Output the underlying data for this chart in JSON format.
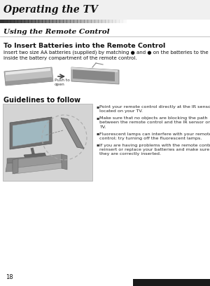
{
  "page_number": "18",
  "background_color": "#ffffff",
  "header_bg": "#1a1a1a",
  "header_text": "Operating the TV",
  "header_text_color": "#ffffff",
  "section_title": "Using the Remote Control",
  "subsection_title": "To Insert Batteries into the Remote Control",
  "body_text1": "Insert two size AA batteries (supplied) by matching ● and ● on the batteries to the diagram\ninside the battery compartment of the remote control.",
  "guidelines_title": "Guidelines to follow",
  "bullet_points": [
    "Point your remote control directly at the IR sensor\nlocated on your TV.",
    "Make sure that no objects are blocking the path\nbetween the remote control and the IR sensor on your\nTV.",
    "Fluorescent lamps can interfere with your remote\ncontrol; try turning off the fluorescent lamps.",
    "If you are having problems with the remote control,\nreinsert or replace your batteries and make sure that\nthey are correctly inserted."
  ],
  "push_to_open_label": "Push to\nopen",
  "footer_number": "18",
  "dark_bar_color": "#1a1a1a",
  "gradient_bar_color": "#555555"
}
